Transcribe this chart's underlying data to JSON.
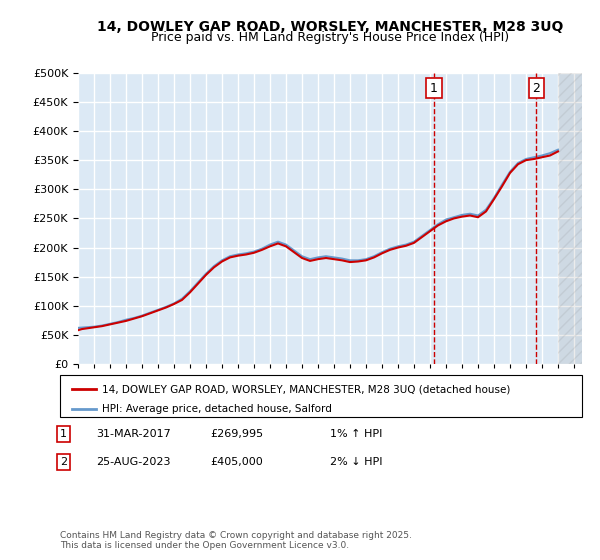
{
  "title1": "14, DOWLEY GAP ROAD, WORSLEY, MANCHESTER, M28 3UQ",
  "title2": "Price paid vs. HM Land Registry's House Price Index (HPI)",
  "legend_line1": "14, DOWLEY GAP ROAD, WORSLEY, MANCHESTER, M28 3UQ (detached house)",
  "legend_line2": "HPI: Average price, detached house, Salford",
  "sale1_label": "1",
  "sale1_date": "31-MAR-2017",
  "sale1_price": "£269,995",
  "sale1_pct": "1% ↑ HPI",
  "sale2_label": "2",
  "sale2_date": "25-AUG-2023",
  "sale2_price": "£405,000",
  "sale2_pct": "2% ↓ HPI",
  "footer1": "Contains HM Land Registry data © Crown copyright and database right 2025.",
  "footer2": "This data is licensed under the Open Government Licence v3.0.",
  "ylim": [
    0,
    500000
  ],
  "yticks": [
    0,
    50000,
    100000,
    150000,
    200000,
    250000,
    300000,
    350000,
    400000,
    450000,
    500000
  ],
  "xlim_start": 1995.0,
  "xlim_end": 2026.5,
  "hatch_start": 2025.0,
  "sale1_x": 2017.25,
  "sale1_y": 269995,
  "sale2_x": 2023.65,
  "sale2_y": 405000,
  "bg_color": "#dce9f5",
  "grid_color": "#ffffff",
  "line_color_red": "#cc0000",
  "line_color_blue": "#6699cc",
  "hpi_data_x": [
    1995.0,
    1995.5,
    1996.0,
    1996.5,
    1997.0,
    1997.5,
    1998.0,
    1998.5,
    1999.0,
    1999.5,
    2000.0,
    2000.5,
    2001.0,
    2001.5,
    2002.0,
    2002.5,
    2003.0,
    2003.5,
    2004.0,
    2004.5,
    2005.0,
    2005.5,
    2006.0,
    2006.5,
    2007.0,
    2007.5,
    2008.0,
    2008.5,
    2009.0,
    2009.5,
    2010.0,
    2010.5,
    2011.0,
    2011.5,
    2012.0,
    2012.5,
    2013.0,
    2013.5,
    2014.0,
    2014.5,
    2015.0,
    2015.5,
    2016.0,
    2016.5,
    2017.0,
    2017.5,
    2018.0,
    2018.5,
    2019.0,
    2019.5,
    2020.0,
    2020.5,
    2021.0,
    2021.5,
    2022.0,
    2022.5,
    2023.0,
    2023.5,
    2024.0,
    2024.5,
    2025.0
  ],
  "hpi_data_y": [
    62000,
    63000,
    64000,
    66000,
    69000,
    72000,
    76000,
    79000,
    83000,
    88000,
    93000,
    98000,
    104000,
    112000,
    125000,
    140000,
    155000,
    168000,
    178000,
    185000,
    188000,
    190000,
    193000,
    198000,
    205000,
    210000,
    205000,
    195000,
    185000,
    180000,
    183000,
    185000,
    183000,
    181000,
    178000,
    178000,
    180000,
    185000,
    192000,
    198000,
    202000,
    205000,
    210000,
    220000,
    230000,
    240000,
    248000,
    252000,
    256000,
    258000,
    255000,
    265000,
    285000,
    308000,
    330000,
    345000,
    352000,
    355000,
    358000,
    362000,
    368000
  ],
  "price_data_x": [
    1995.0,
    1995.25,
    1995.75,
    1996.0,
    1996.5,
    1997.0,
    1997.5,
    1998.0,
    1998.5,
    1999.0,
    1999.5,
    2000.0,
    2000.5,
    2001.0,
    2001.5,
    2002.0,
    2002.5,
    2003.0,
    2003.5,
    2004.0,
    2004.5,
    2005.0,
    2005.5,
    2006.0,
    2006.5,
    2007.0,
    2007.5,
    2008.0,
    2008.5,
    2009.0,
    2009.5,
    2010.0,
    2010.5,
    2011.0,
    2011.5,
    2012.0,
    2012.5,
    2013.0,
    2013.5,
    2014.0,
    2014.5,
    2015.0,
    2015.5,
    2016.0,
    2016.5,
    2017.0,
    2017.5,
    2018.0,
    2018.5,
    2019.0,
    2019.5,
    2020.0,
    2020.5,
    2021.0,
    2021.5,
    2022.0,
    2022.5,
    2023.0,
    2023.5,
    2024.0,
    2024.5,
    2025.0
  ],
  "price_data_y": [
    58000,
    60000,
    62000,
    63000,
    65000,
    68000,
    71000,
    74000,
    78000,
    82000,
    87000,
    92000,
    97000,
    103000,
    110000,
    123000,
    138000,
    153000,
    166000,
    176000,
    183000,
    186000,
    188000,
    191000,
    196000,
    202000,
    207000,
    202000,
    192000,
    182000,
    177000,
    180000,
    182000,
    180000,
    178000,
    175000,
    176000,
    178000,
    183000,
    190000,
    196000,
    200000,
    203000,
    208000,
    218000,
    228000,
    238000,
    245000,
    250000,
    253000,
    255000,
    252000,
    262000,
    283000,
    305000,
    328000,
    343000,
    350000,
    352000,
    355000,
    358000,
    365000
  ]
}
